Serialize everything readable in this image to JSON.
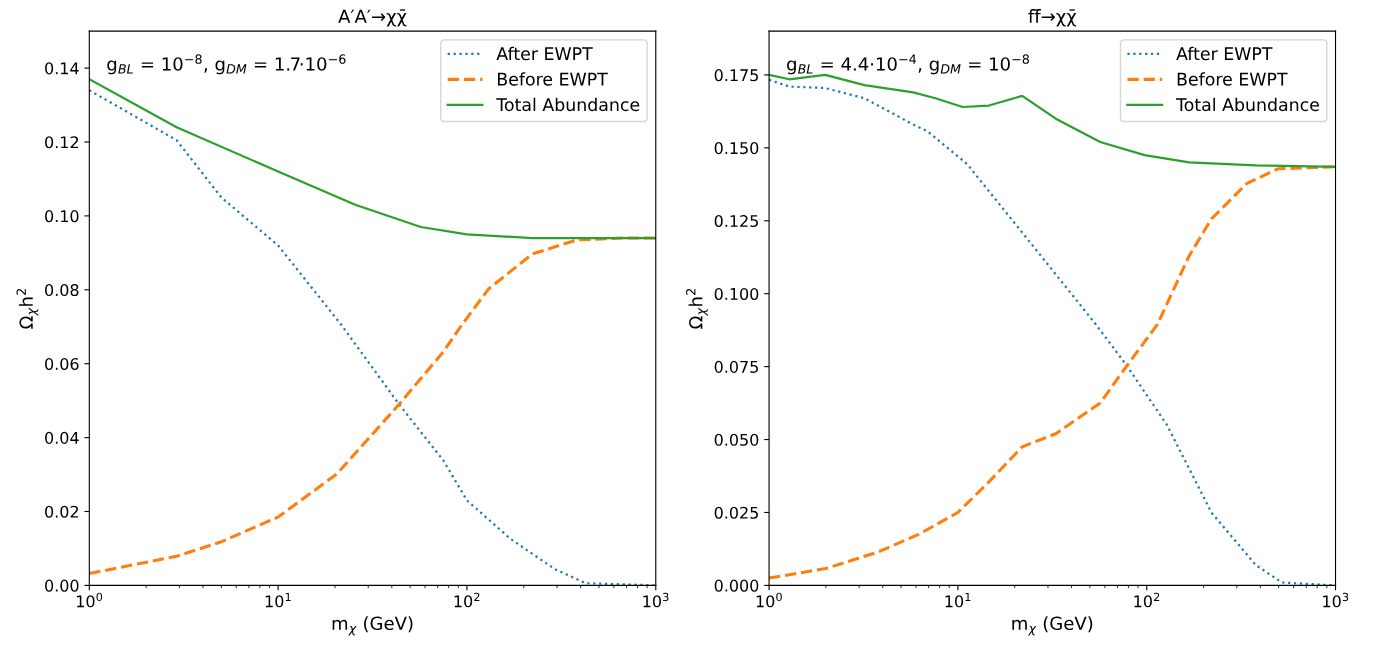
{
  "chart_data": [
    {
      "type": "line",
      "title": "A′A′→χχ̄",
      "xlabel": "m$_{χ}$ (GeV)",
      "ylabel": "Ω$_{χ}$h$^{2}$",
      "log": "x",
      "legend": "top right",
      "grid": false,
      "annotations": [
        "g$_{BL}$ = 10$^{−8}$, g$_{DM}$ = 1.7·10$^{−6}$"
      ],
      "xlim": [
        1,
        1000
      ],
      "xticks": [
        {
          "value": 1,
          "label": "10$^{0}$"
        },
        {
          "value": 10,
          "label": "10$^{1}$"
        },
        {
          "value": 100,
          "label": "10$^{2}$"
        },
        {
          "value": 1000,
          "label": "10$^{3}$"
        }
      ],
      "ylim": [
        0,
        0.15
      ],
      "yticks": [
        {
          "value": 0,
          "label": "0.00"
        },
        {
          "value": 0.02,
          "label": "0.02"
        },
        {
          "value": 0.04,
          "label": "0.04"
        },
        {
          "value": 0.06,
          "label": "0.06"
        },
        {
          "value": 0.08,
          "label": "0.08"
        },
        {
          "value": 0.1,
          "label": "0.10"
        },
        {
          "value": 0.12,
          "label": "0.12"
        },
        {
          "value": 0.14,
          "label": "0.14"
        }
      ],
      "series": [
        {
          "name": "After EWPT",
          "color": "#1f77b4",
          "line_style": "dotted",
          "x": [
            1,
            2.9,
            5,
            10,
            21.7,
            43.7,
            75,
            100,
            170,
            292,
            425,
            1000
          ],
          "values": [
            0.134,
            0.1205,
            0.105,
            0.092,
            0.0704,
            0.049,
            0.0338,
            0.023,
            0.0126,
            0.0044,
            0.0006,
            0
          ]
        },
        {
          "name": "Before EWPT",
          "color": "#ff7f0e",
          "line_style": "dashed",
          "x": [
            1,
            2.9,
            5,
            10,
            20.5,
            43.7,
            75,
            93.6,
            130,
            222,
            382,
            660,
            1000
          ],
          "values": [
            0.0032,
            0.0079,
            0.0118,
            0.0185,
            0.0302,
            0.049,
            0.0632,
            0.0704,
            0.0802,
            0.0897,
            0.0935,
            0.094,
            0.094
          ]
        },
        {
          "name": "Total Abundance",
          "color": "#2ca02c",
          "line_style": "solid",
          "x": [
            1,
            2.9,
            10,
            25.6,
            57,
            100,
            222,
            1000
          ],
          "values": [
            0.137,
            0.124,
            0.112,
            0.103,
            0.097,
            0.095,
            0.094,
            0.094
          ]
        }
      ]
    },
    {
      "type": "line",
      "title": "ff̄→χχ̄",
      "xlabel": "m$_{χ}$ (GeV)",
      "ylabel": "Ω$_{χ}$h$^{2}$",
      "log": "x",
      "legend": "top right",
      "grid": false,
      "annotations": [
        "g$_{BL}$ = 4.4·10$^{−4}$, g$_{DM}$ = 10$^{−8}$"
      ],
      "xlim": [
        1,
        1000
      ],
      "xticks": [
        {
          "value": 1,
          "label": "10$^{0}$"
        },
        {
          "value": 10,
          "label": "10$^{1}$"
        },
        {
          "value": 100,
          "label": "10$^{2}$"
        },
        {
          "value": 1000,
          "label": "10$^{3}$"
        }
      ],
      "ylim": [
        0,
        0.19
      ],
      "yticks": [
        {
          "value": 0,
          "label": "0.000"
        },
        {
          "value": 0.025,
          "label": "0.025"
        },
        {
          "value": 0.05,
          "label": "0.050"
        },
        {
          "value": 0.075,
          "label": "0.075"
        },
        {
          "value": 0.1,
          "label": "0.100"
        },
        {
          "value": 0.125,
          "label": "0.125"
        },
        {
          "value": 0.15,
          "label": "0.150"
        },
        {
          "value": 0.175,
          "label": "0.175"
        }
      ],
      "series": [
        {
          "name": "After EWPT",
          "color": "#1f77b4",
          "line_style": "dotted",
          "x": [
            1,
            1.28,
            1.98,
            3.2,
            5.8,
            6.9,
            11.2,
            21.9,
            53.6,
            78.5,
            128,
            220,
            378,
            520,
            1000
          ],
          "values": [
            0.1733,
            0.171,
            0.1705,
            0.167,
            0.158,
            0.1557,
            0.1444,
            0.121,
            0.0896,
            0.0753,
            0.055,
            0.025,
            0.007,
            0.001,
            0
          ]
        },
        {
          "name": "Before EWPT",
          "color": "#ff7f0e",
          "line_style": "dashed",
          "x": [
            1,
            2,
            3.8,
            6.2,
            10,
            14.6,
            21.9,
            33,
            56.7,
            78.5,
            114,
            168,
            220,
            338,
            495,
            1000
          ],
          "values": [
            0.0025,
            0.0058,
            0.0115,
            0.0175,
            0.025,
            0.0355,
            0.0475,
            0.052,
            0.0625,
            0.0753,
            0.0895,
            0.113,
            0.1256,
            0.1377,
            0.1428,
            0.1435
          ]
        },
        {
          "name": "Total Abundance",
          "color": "#2ca02c",
          "line_style": "solid",
          "x": [
            1,
            1.28,
            1.98,
            3.2,
            5.8,
            7.6,
            10.6,
            14.6,
            21.9,
            33,
            56.7,
            97.5,
            168,
            376,
            1000
          ],
          "values": [
            0.175,
            0.1735,
            0.175,
            0.1715,
            0.169,
            0.167,
            0.164,
            0.1645,
            0.1678,
            0.16,
            0.152,
            0.1475,
            0.145,
            0.144,
            0.1435
          ]
        }
      ]
    }
  ]
}
